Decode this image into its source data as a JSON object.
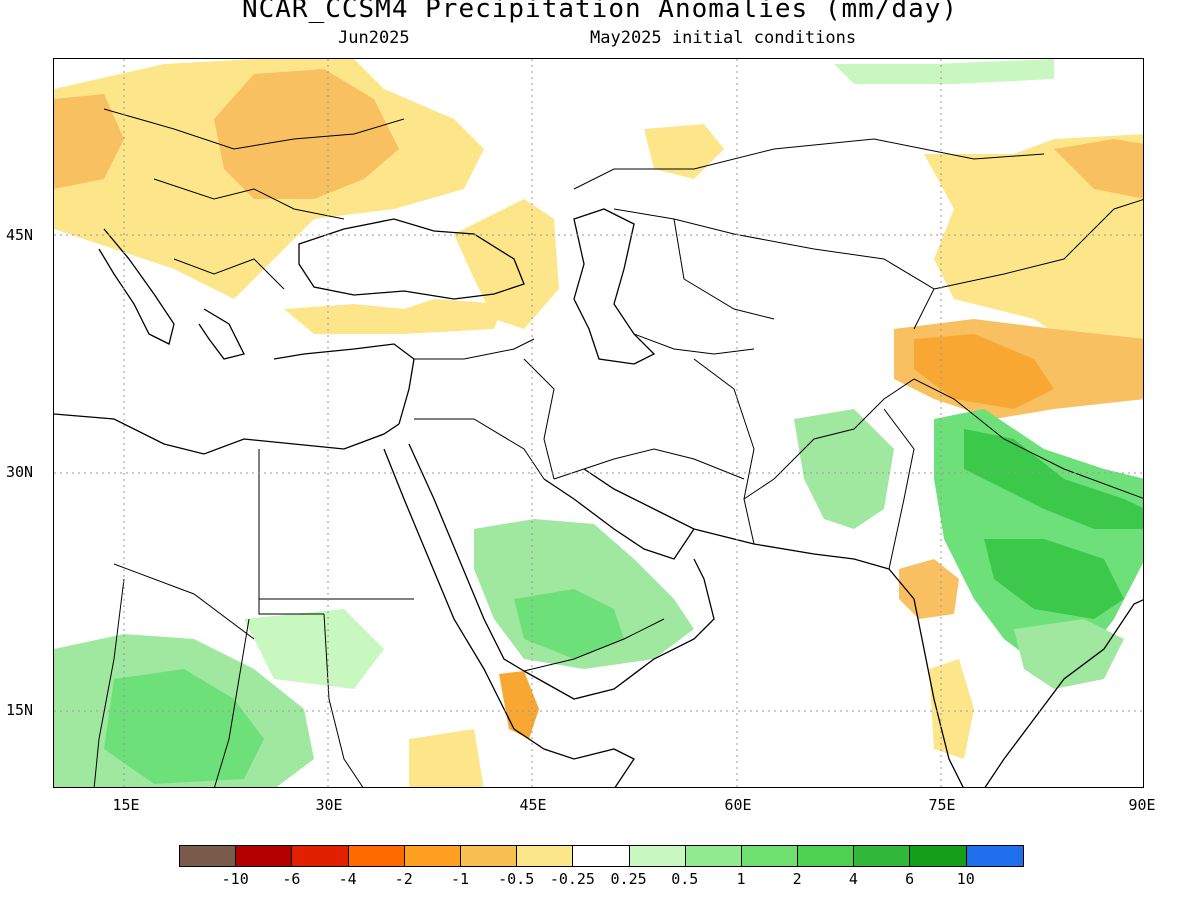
{
  "title": "NCAR_CCSM4 Precipitation Anomalies (mm/day)",
  "subtitle_left": "Jun2025",
  "subtitle_right": "May2025 initial conditions",
  "map": {
    "lon_range": [
      10,
      90
    ],
    "lat_range": [
      10,
      57
    ],
    "lat_labels": [
      "45N",
      "30N",
      "15N"
    ],
    "lon_labels": [
      "15E",
      "30E",
      "45E",
      "60E",
      "75E",
      "90E"
    ],
    "gridlines": "dotted",
    "anomaly_regions": [
      {
        "region": "Eastern Europe / Ukraine",
        "category": "-1 to -0.5",
        "color": "#f8c060"
      },
      {
        "region": "Central Europe",
        "category": "-0.5 to -0.25",
        "color": "#fde68a"
      },
      {
        "region": "Caucasus / Turkey east",
        "category": "-0.5 to -0.25",
        "color": "#fde68a"
      },
      {
        "region": "Tibet / Western Himalaya",
        "category": "-2 to -1",
        "color": "#f8a832"
      },
      {
        "region": "Mongolia / NW China",
        "category": "-1 to -0.5",
        "color": "#f8c060"
      },
      {
        "region": "Saudi Arabia",
        "category": "0.5 to 1",
        "color": "#a0e8a0"
      },
      {
        "region": "Sahel / Chad",
        "category": "0.5 to 1",
        "color": "#a0e8a0"
      },
      {
        "region": "Northern India / Nepal",
        "category": "2 to 4",
        "color": "#3cc84a"
      },
      {
        "region": "Eastern India",
        "category": "1 to 2",
        "color": "#6ee07a"
      },
      {
        "region": "Gujarat",
        "category": "-1 to -0.5",
        "color": "#f8c060"
      },
      {
        "region": "Yemen",
        "category": "-2 to -1",
        "color": "#f8a832"
      }
    ]
  },
  "legend": {
    "colors": [
      "#7a5a4a",
      "#b50000",
      "#e02000",
      "#ff6a00",
      "#ffa020",
      "#f8c050",
      "#fce68a",
      "#ffffff",
      "#c8f8c0",
      "#92ea90",
      "#6ee070",
      "#4ed050",
      "#32b83a",
      "#13a018",
      "#2070ee"
    ],
    "ticks": [
      "-10",
      "-6",
      "-4",
      "-2",
      "-1",
      "-0.5",
      "-0.25",
      "0.25",
      "0.5",
      "1",
      "2",
      "4",
      "6",
      "10"
    ]
  }
}
